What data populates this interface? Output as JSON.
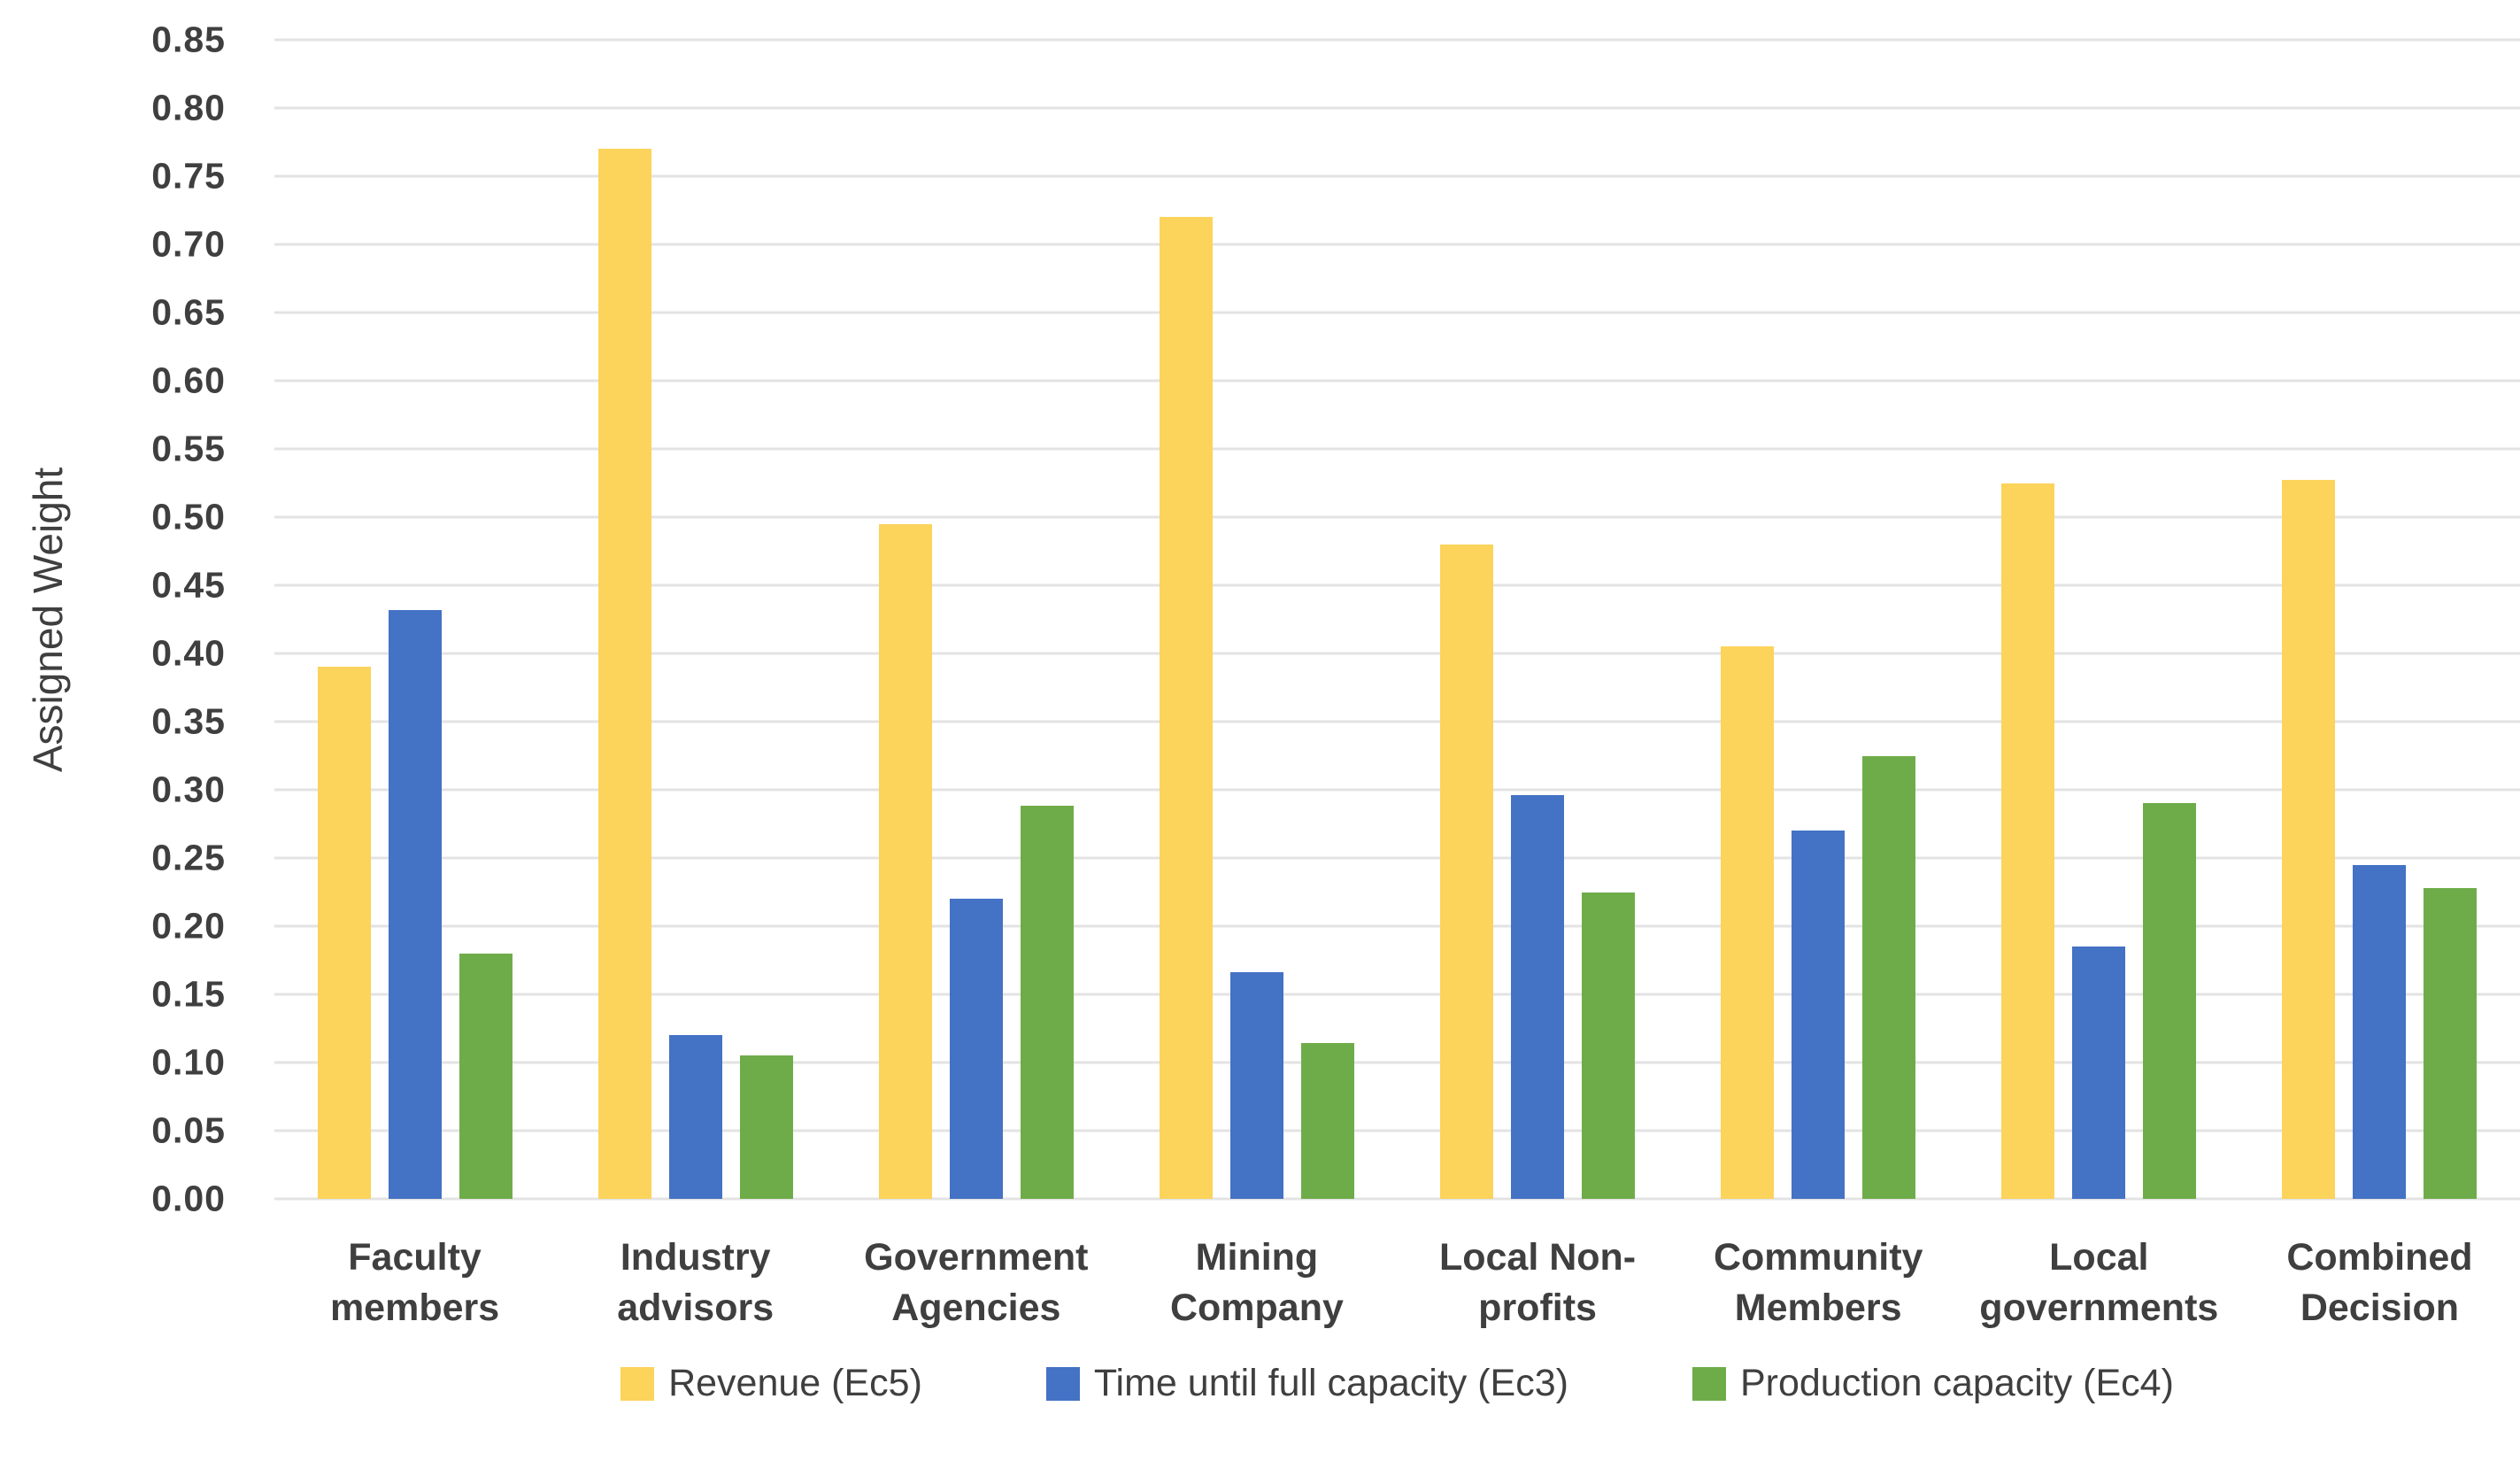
{
  "chart_data": {
    "type": "bar",
    "title": "",
    "xlabel": "",
    "ylabel": "Assigned Weight",
    "ylim": [
      0,
      0.85
    ],
    "ytick_step": 0.05,
    "ytick_decimals": 2,
    "grid": true,
    "legend_position": "bottom",
    "background_color": "#ffffff",
    "gridline_color": "#e3e3e3",
    "text_color": "#3f3f3f",
    "categories": [
      [
        "Faculty",
        "members"
      ],
      [
        "Industry",
        "advisors"
      ],
      [
        "Government",
        "Agencies"
      ],
      [
        "Mining",
        "Company"
      ],
      [
        "Local Non-",
        "profits"
      ],
      [
        "Community",
        "Members"
      ],
      [
        "Local",
        "governments"
      ],
      [
        "Combined",
        "Decision"
      ]
    ],
    "series": [
      {
        "name": "Revenue (Ec5)",
        "color": "#FCD35B",
        "values": [
          0.39,
          0.77,
          0.495,
          0.72,
          0.48,
          0.405,
          0.525,
          0.527
        ]
      },
      {
        "name": "Time until full capacity (Ec3)",
        "color": "#4472C4",
        "values": [
          0.432,
          0.12,
          0.22,
          0.166,
          0.296,
          0.27,
          0.185,
          0.245
        ]
      },
      {
        "name": "Production capacity (Ec4)",
        "color": "#6EAC49",
        "values": [
          0.18,
          0.105,
          0.288,
          0.114,
          0.225,
          0.325,
          0.29,
          0.228
        ]
      }
    ]
  }
}
